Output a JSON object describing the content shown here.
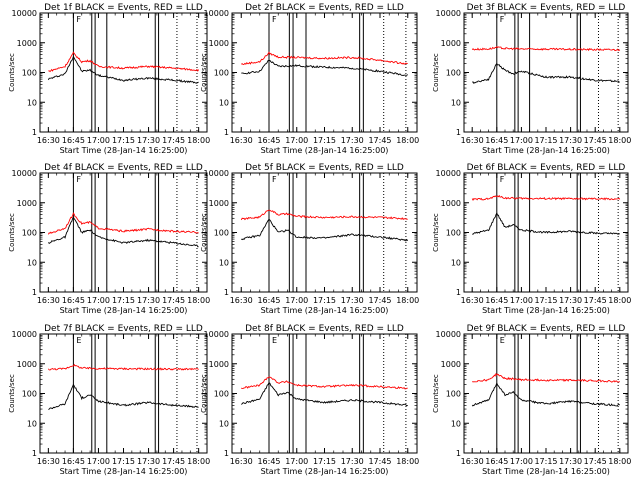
{
  "figure": {
    "ylabel": "Counts/sec",
    "xlabel": "Start Time (28-Jan-14 16:25:00)",
    "x_ticks": [
      "16:30",
      "16:45",
      "17:00",
      "17:15",
      "17:30",
      "17:45",
      "18:00"
    ],
    "y_ticks": [
      "1",
      "10",
      "100",
      "1000",
      "10000"
    ],
    "panel_markers": [
      "F",
      "F",
      "F",
      "F",
      "F",
      "F",
      "E",
      "E",
      "E"
    ],
    "colors": {
      "events": "#000000",
      "lld": "#ff0000",
      "marker_line": "#000000"
    }
  },
  "chart_data": [
    {
      "type": "line",
      "title": "Det 1f  BLACK = Events, RED = LLD",
      "xlabel": "Start Time (28-Jan-14 16:25:00)",
      "ylabel": "Counts/sec",
      "xlim": [
        "16:25",
        "18:05"
      ],
      "ylim": [
        1,
        10000
      ],
      "y_scale": "log",
      "x": [
        "16:30",
        "16:40",
        "16:45",
        "16:50",
        "16:55",
        "17:00",
        "17:15",
        "17:30",
        "17:45",
        "18:00"
      ],
      "series": [
        {
          "name": "Events",
          "values": [
            60,
            90,
            350,
            110,
            120,
            80,
            55,
            65,
            55,
            45
          ]
        },
        {
          "name": "LLD",
          "values": [
            110,
            160,
            450,
            230,
            250,
            160,
            140,
            160,
            140,
            120
          ]
        }
      ],
      "solid_lines": [
        "16:45",
        "16:56",
        "16:58",
        "17:05",
        "17:34",
        "17:36"
      ],
      "dashed_lines": [
        "17:47",
        "17:59"
      ]
    },
    {
      "type": "line",
      "title": "Det 2f  BLACK = Events, RED = LLD",
      "xlabel": "Start Time (28-Jan-14 16:25:00)",
      "ylabel": "Counts/sec",
      "xlim": [
        "16:25",
        "18:05"
      ],
      "ylim": [
        1,
        10000
      ],
      "y_scale": "log",
      "x": [
        "16:30",
        "16:40",
        "16:45",
        "16:50",
        "17:00",
        "17:15",
        "17:30",
        "17:45",
        "18:00"
      ],
      "series": [
        {
          "name": "Events",
          "values": [
            90,
            110,
            260,
            160,
            170,
            150,
            140,
            110,
            80
          ]
        },
        {
          "name": "LLD",
          "values": [
            190,
            230,
            450,
            330,
            320,
            300,
            320,
            260,
            190
          ]
        }
      ],
      "solid_lines": [
        "16:45",
        "16:56",
        "16:58",
        "17:05",
        "17:34",
        "17:36"
      ],
      "dashed_lines": [
        "17:47",
        "17:59"
      ]
    },
    {
      "type": "line",
      "title": "Det 3f  BLACK = Events, RED = LLD",
      "xlabel": "Start Time (28-Jan-14 16:25:00)",
      "ylabel": "Counts/sec",
      "xlim": [
        "16:25",
        "18:05"
      ],
      "ylim": [
        1,
        10000
      ],
      "y_scale": "log",
      "x": [
        "16:30",
        "16:40",
        "16:45",
        "16:50",
        "16:55",
        "17:00",
        "17:15",
        "17:30",
        "17:45",
        "18:00"
      ],
      "series": [
        {
          "name": "Events",
          "values": [
            45,
            60,
            200,
            120,
            90,
            110,
            70,
            70,
            55,
            50
          ]
        },
        {
          "name": "LLD",
          "values": [
            600,
            620,
            700,
            640,
            630,
            620,
            610,
            600,
            590,
            580
          ]
        }
      ],
      "solid_lines": [
        "16:45",
        "16:56",
        "16:58",
        "17:05",
        "17:34",
        "17:36"
      ],
      "dashed_lines": [
        "17:47",
        "17:59"
      ]
    },
    {
      "type": "line",
      "title": "Det 4f  BLACK = Events, RED = LLD",
      "xlabel": "Start Time (28-Jan-14 16:25:00)",
      "ylabel": "Counts/sec",
      "xlim": [
        "16:25",
        "18:05"
      ],
      "ylim": [
        1,
        10000
      ],
      "y_scale": "log",
      "x": [
        "16:30",
        "16:40",
        "16:45",
        "16:50",
        "16:55",
        "17:00",
        "17:15",
        "17:30",
        "17:45",
        "18:00"
      ],
      "series": [
        {
          "name": "Events",
          "values": [
            45,
            70,
            330,
            100,
            120,
            70,
            45,
            55,
            45,
            35
          ]
        },
        {
          "name": "LLD",
          "values": [
            90,
            140,
            420,
            200,
            220,
            140,
            110,
            130,
            110,
            100
          ]
        }
      ],
      "solid_lines": [
        "16:45",
        "16:56",
        "16:58",
        "17:05",
        "17:34",
        "17:36"
      ],
      "dashed_lines": [
        "17:47",
        "17:59"
      ]
    },
    {
      "type": "line",
      "title": "Det 5f  BLACK = Events, RED = LLD",
      "xlabel": "Start Time (28-Jan-14 16:25:00)",
      "ylabel": "Counts/sec",
      "xlim": [
        "16:25",
        "18:05"
      ],
      "ylim": [
        1,
        10000
      ],
      "y_scale": "log",
      "x": [
        "16:30",
        "16:40",
        "16:45",
        "16:50",
        "16:55",
        "17:00",
        "17:15",
        "17:30",
        "17:45",
        "18:00"
      ],
      "series": [
        {
          "name": "Events",
          "values": [
            60,
            80,
            280,
            100,
            120,
            70,
            65,
            85,
            70,
            55
          ]
        },
        {
          "name": "LLD",
          "values": [
            280,
            330,
            600,
            400,
            420,
            350,
            320,
            340,
            320,
            290
          ]
        }
      ],
      "solid_lines": [
        "16:45",
        "16:56",
        "16:58",
        "17:05",
        "17:34",
        "17:36"
      ],
      "dashed_lines": [
        "17:47",
        "17:59"
      ]
    },
    {
      "type": "line",
      "title": "Det 6f  BLACK = Events, RED = LLD",
      "xlabel": "Start Time (28-Jan-14 16:25:00)",
      "ylabel": "Counts/sec",
      "xlim": [
        "16:25",
        "18:05"
      ],
      "ylim": [
        1,
        10000
      ],
      "y_scale": "log",
      "x": [
        "16:30",
        "16:40",
        "16:45",
        "16:50",
        "16:55",
        "17:00",
        "17:15",
        "17:30",
        "17:45",
        "18:00"
      ],
      "series": [
        {
          "name": "Events",
          "values": [
            90,
            120,
            450,
            150,
            180,
            120,
            100,
            110,
            95,
            90
          ]
        },
        {
          "name": "LLD",
          "values": [
            1300,
            1350,
            1700,
            1450,
            1420,
            1400,
            1380,
            1370,
            1350,
            1330
          ]
        }
      ],
      "solid_lines": [
        "16:45",
        "16:56",
        "16:58",
        "17:05",
        "17:34",
        "17:36"
      ],
      "dashed_lines": [
        "17:47",
        "17:59"
      ]
    },
    {
      "type": "line",
      "title": "Det 7f  BLACK = Events, RED = LLD",
      "xlabel": "Start Time (28-Jan-14 16:25:00)",
      "ylabel": "Counts/sec",
      "xlim": [
        "16:25",
        "18:05"
      ],
      "ylim": [
        1,
        10000
      ],
      "y_scale": "log",
      "x": [
        "16:30",
        "16:40",
        "16:45",
        "16:50",
        "16:55",
        "17:00",
        "17:15",
        "17:30",
        "17:45",
        "18:00"
      ],
      "series": [
        {
          "name": "Events",
          "values": [
            30,
            45,
            200,
            70,
            90,
            55,
            40,
            50,
            40,
            35
          ]
        },
        {
          "name": "LLD",
          "values": [
            650,
            680,
            900,
            720,
            700,
            690,
            680,
            670,
            660,
            650
          ]
        }
      ],
      "solid_lines": [
        "16:45",
        "16:56",
        "16:58",
        "17:05",
        "17:34",
        "17:36"
      ],
      "dashed_lines": [
        "17:47",
        "17:59"
      ]
    },
    {
      "type": "line",
      "title": "Det 8f  BLACK = Events, RED = LLD",
      "xlabel": "Start Time (28-Jan-14 16:25:00)",
      "ylabel": "Counts/sec",
      "xlim": [
        "16:25",
        "18:05"
      ],
      "ylim": [
        1,
        10000
      ],
      "y_scale": "log",
      "x": [
        "16:30",
        "16:40",
        "16:45",
        "16:50",
        "16:55",
        "17:00",
        "17:15",
        "17:30",
        "17:45",
        "18:00"
      ],
      "series": [
        {
          "name": "Events",
          "values": [
            45,
            65,
            230,
            90,
            110,
            65,
            50,
            60,
            50,
            40
          ]
        },
        {
          "name": "LLD",
          "values": [
            150,
            190,
            380,
            230,
            250,
            190,
            170,
            190,
            170,
            150
          ]
        }
      ],
      "solid_lines": [
        "16:45",
        "16:56",
        "16:58",
        "17:05",
        "17:34",
        "17:36"
      ],
      "dashed_lines": [
        "17:47",
        "17:59"
      ]
    },
    {
      "type": "line",
      "title": "Det 9f  BLACK = Events, RED = LLD",
      "xlabel": "Start Time (28-Jan-14 16:25:00)",
      "ylabel": "Counts/sec",
      "xlim": [
        "16:25",
        "18:05"
      ],
      "ylim": [
        1,
        10000
      ],
      "y_scale": "log",
      "x": [
        "16:30",
        "16:40",
        "16:45",
        "16:50",
        "16:55",
        "17:00",
        "17:15",
        "17:30",
        "17:45",
        "18:00"
      ],
      "series": [
        {
          "name": "Events",
          "values": [
            40,
            60,
            220,
            90,
            110,
            60,
            45,
            55,
            45,
            40
          ]
        },
        {
          "name": "LLD",
          "values": [
            250,
            290,
            450,
            320,
            310,
            290,
            280,
            280,
            270,
            250
          ]
        }
      ],
      "solid_lines": [
        "16:45",
        "16:56",
        "16:58",
        "17:05",
        "17:34",
        "17:36"
      ],
      "dashed_lines": [
        "17:47",
        "17:59"
      ]
    }
  ]
}
